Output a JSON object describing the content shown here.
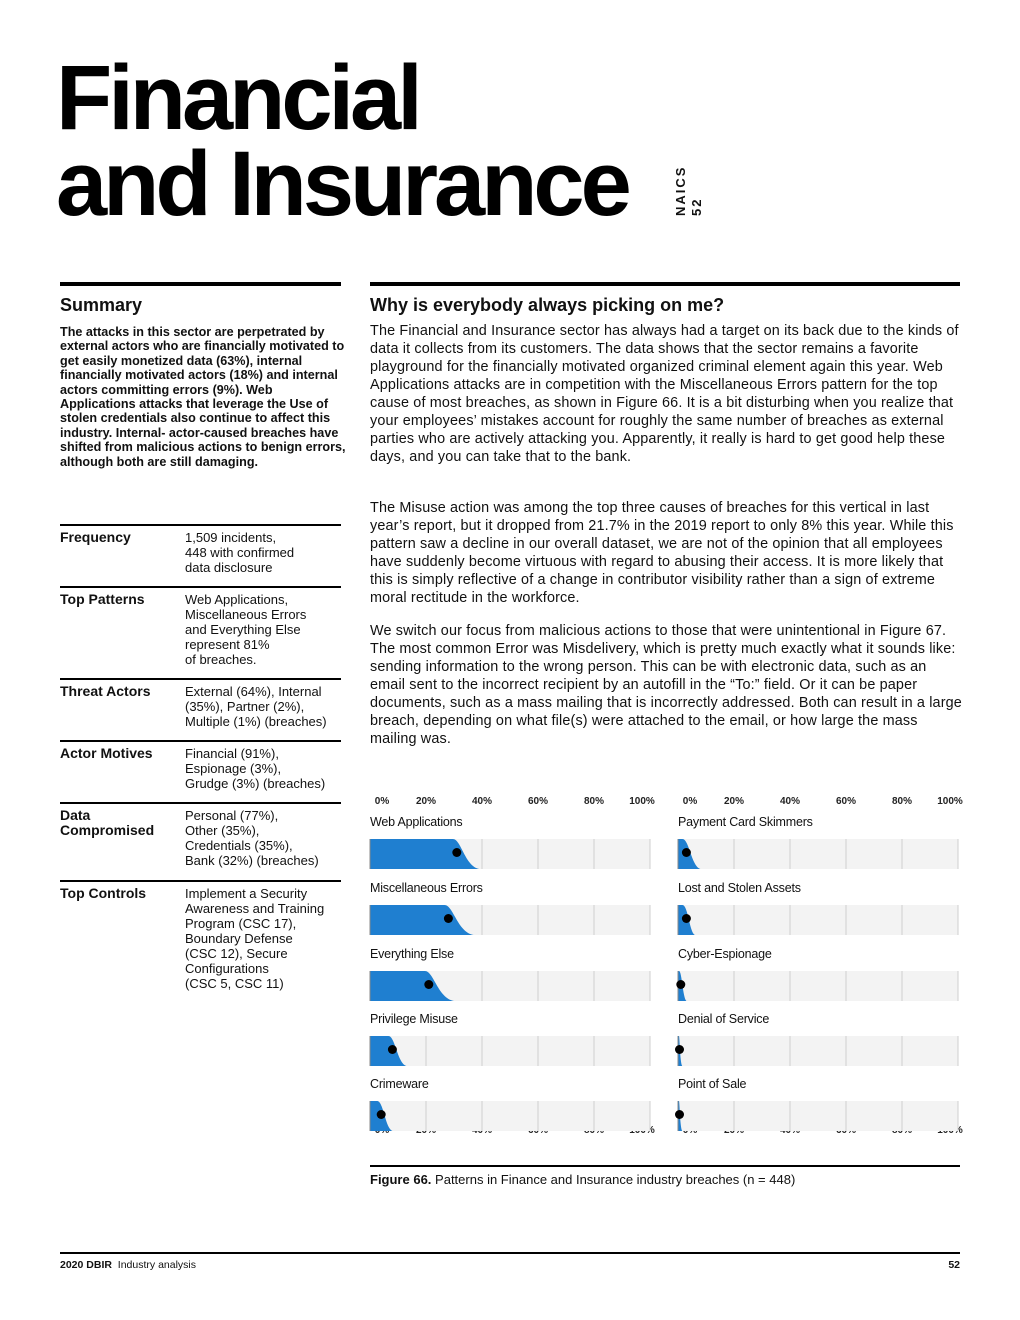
{
  "title": {
    "line1": "Financial",
    "line2": "and Insurance"
  },
  "naics": {
    "label": "NAICS",
    "code": "52"
  },
  "summary": {
    "heading": "Summary",
    "text": "The attacks in this sector are perpetrated by external actors who are financially motivated to get easily monetized data (63%), internal financially motivated actors (18%) and internal actors committing errors (9%). Web Applications attacks that leverage the Use of stolen credentials also continue to affect this industry. Internal- actor-caused breaches have shifted from malicious actions to benign errors, although both are still damaging."
  },
  "facts": [
    {
      "label": "Frequency",
      "value": "1,509 incidents,\n448 with confirmed\ndata disclosure"
    },
    {
      "label": "Top Patterns",
      "value": "Web Applications,\nMiscellaneous Errors\nand Everything Else\nrepresent 81%\nof breaches."
    },
    {
      "label": "Threat Actors",
      "value": "External (64%), Internal\n(35%), Partner (2%),\nMultiple (1%) (breaches)"
    },
    {
      "label": "Actor Motives",
      "value": "Financial (91%),\nEspionage (3%),\nGrudge (3%) (breaches)"
    },
    {
      "label": "Data Compromised",
      "value": "Personal (77%),\nOther (35%),\nCredentials (35%),\nBank (32%) (breaches)"
    },
    {
      "label": "Top Controls",
      "value": "Implement a Security\nAwareness and Training\nProgram (CSC 17),\nBoundary Defense\n(CSC 12), Secure\nConfigurations\n(CSC 5, CSC 11)"
    }
  ],
  "main": {
    "heading": "Why is everybody always picking on me?",
    "paragraphs": [
      "The Financial and Insurance sector has always had a target on its back due to the kinds of data it collects from its customers. The data shows that the sector remains a favorite playground for the financially motivated organized criminal element again this year. Web Applications attacks are in competition with the Miscellaneous Errors pattern for the top cause of most breaches, as shown in Figure 66. It is a bit disturbing when you realize that your employees’ mistakes account for roughly the same number of breaches as external parties who are actively attacking you. Apparently, it really is hard to get good help these days, and you can take that to the bank.",
      "The Misuse action was among the top three causes of breaches for this vertical in last year’s report, but it dropped from 21.7% in the 2019 report to only 8% this year. While this pattern saw a decline in our overall dataset, we are not of the opinion that all employees have suddenly become virtuous with regard to abusing their access. It is more likely that this is simply reflective of a change in contributor visibility rather than a sign of extreme moral rectitude in the workforce.",
      "We switch our focus from malicious actions to those that were unintentional in Figure 67. The most common Error was Misdelivery, which is pretty much exactly what it sounds like: sending information to the wrong person. This can be with electronic data, such as an email sent to the incorrect recipient by an autofill in the “To:” field. Or it can be paper documents, such as a mass mailing that is incorrectly addressed. Both can result in a large breach, depending on what file(s) were attached to the email, or how large the mass mailing was."
    ]
  },
  "chart_data": {
    "type": "bar",
    "ticks": [
      "0%",
      "20%",
      "40%",
      "60%",
      "80%",
      "100%"
    ],
    "xlim": [
      0,
      100
    ],
    "panels": [
      {
        "categories": [
          "Web Applications",
          "Miscellaneous Errors",
          "Everything Else",
          "Privilege Misuse",
          "Crimeware"
        ],
        "values": [
          31,
          28,
          21,
          8,
          4
        ],
        "spread_max": [
          39,
          37,
          30,
          13,
          8
        ]
      },
      {
        "categories": [
          "Payment Card Skimmers",
          "Lost and Stolen Assets",
          "Cyber-Espionage",
          "Denial of Service",
          "Point of Sale"
        ],
        "values": [
          3,
          3,
          1,
          0.3,
          0.3
        ],
        "spread_max": [
          8,
          6,
          3,
          1.5,
          1.5
        ]
      }
    ],
    "colors": {
      "fill": "#1f7fd0",
      "dot": "#000000",
      "track": "#f3f3f3",
      "grid": "#cfcfcf"
    }
  },
  "figure_caption": {
    "label": "Figure 66.",
    "text": "Patterns in Finance and Insurance industry breaches (n = 448)"
  },
  "footer": {
    "report": "2020 DBIR",
    "section": "Industry analysis",
    "page": "52"
  }
}
